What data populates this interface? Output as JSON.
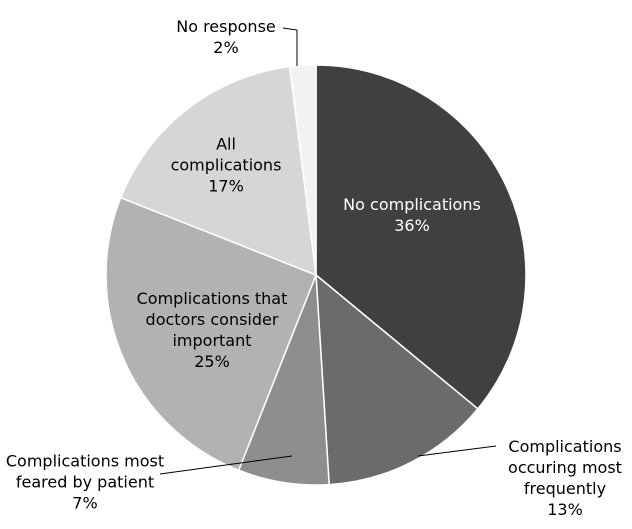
{
  "chart_data": {
    "type": "pie",
    "categories": [
      "No complications",
      "Complications occuring most frequently",
      "Complications most feared by patient",
      "Complications that doctors consider important",
      "All complications",
      "No response"
    ],
    "values": [
      36,
      13,
      7,
      25,
      17,
      2
    ],
    "value_labels": [
      "36%",
      "13%",
      "7%",
      "25%",
      "17%",
      "2%"
    ],
    "colors": [
      "#404040",
      "#6b6b6b",
      "#8e8e8e",
      "#b2b2b2",
      "#d6d6d6",
      "#f2f2f2"
    ]
  }
}
